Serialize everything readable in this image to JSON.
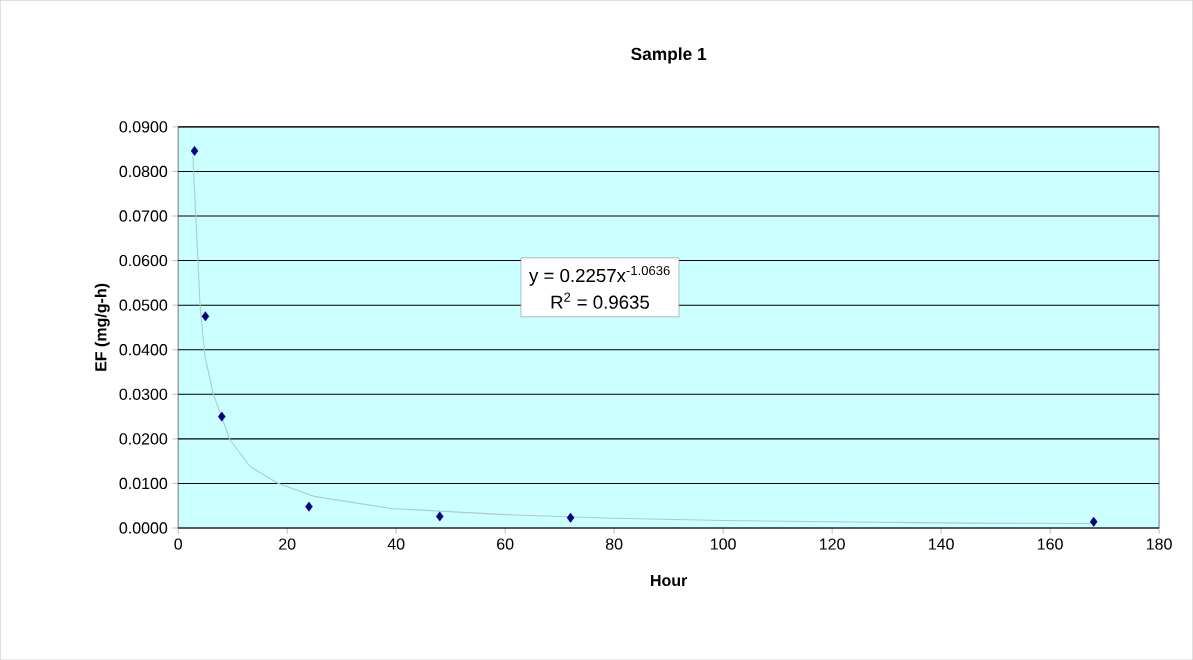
{
  "chart_data": {
    "type": "scatter",
    "title": "Sample 1",
    "xlabel": "Hour",
    "ylabel": "EF (mg/g-h)",
    "series": [
      {
        "type": "scatter",
        "color": "#000080",
        "marker": "diamond",
        "x": [
          3,
          5,
          8,
          24,
          48,
          72,
          168
        ],
        "values": [
          0.0846,
          0.0475,
          0.025,
          0.0048,
          0.0026,
          0.0023,
          0.0014
        ]
      },
      {
        "type": "line",
        "color": "#a8cccc",
        "marker": "none",
        "x": [
          2.7,
          4.0,
          4.9,
          6.4,
          9.5,
          13.2,
          18.2,
          25,
          39,
          60,
          80,
          100,
          120,
          145,
          168
        ],
        "values": [
          0.0834,
          0.0502,
          0.0386,
          0.0302,
          0.0198,
          0.0138,
          0.0101,
          0.0071,
          0.0044,
          0.003,
          0.0022,
          0.0017,
          0.0014,
          0.0011,
          0.001
        ]
      }
    ],
    "annotations": [
      "y = 0.2257x$^{-1.0636}$",
      "R$^{2}$ = 0.9635"
    ],
    "xlim": [
      0,
      180
    ],
    "xticks": [
      0,
      20,
      40,
      60,
      80,
      100,
      120,
      140,
      160,
      180
    ],
    "ylim": [
      0,
      0.09
    ],
    "yticks": [
      {
        "value": 0,
        "label": "0.0000"
      },
      {
        "value": 0.01,
        "label": "0.0100"
      },
      {
        "value": 0.02,
        "label": "0.0200"
      },
      {
        "value": 0.03,
        "label": "0.0300"
      },
      {
        "value": 0.04,
        "label": "0.0400"
      },
      {
        "value": 0.05,
        "label": "0.0500"
      },
      {
        "value": 0.06,
        "label": "0.0600"
      },
      {
        "value": 0.07,
        "label": "0.0700"
      },
      {
        "value": 0.08,
        "label": "0.0800"
      },
      {
        "value": 0.09,
        "label": "0.0900"
      }
    ],
    "grid": "y"
  }
}
